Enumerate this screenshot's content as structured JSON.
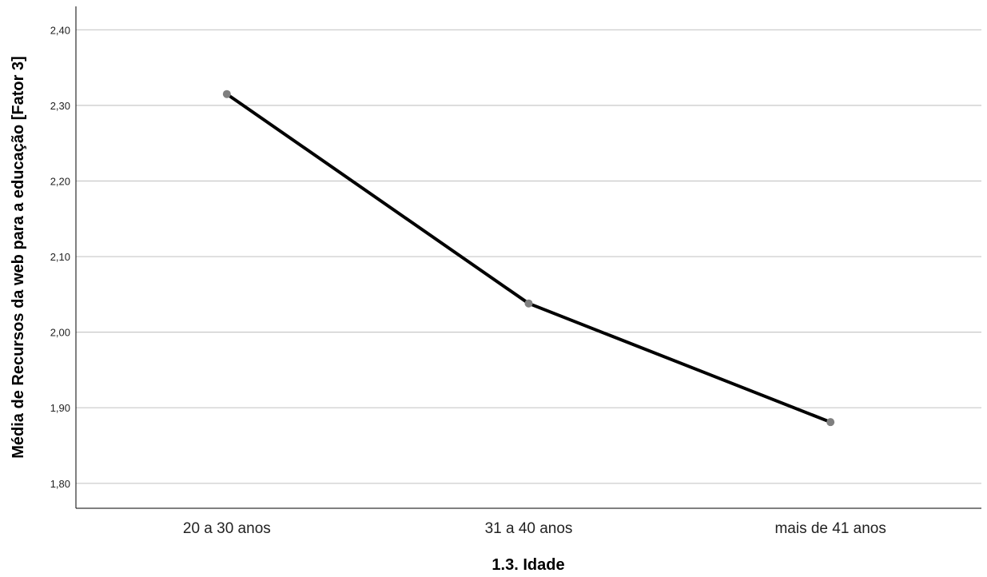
{
  "chart_data": {
    "type": "line",
    "xlabel": "1.3. Idade",
    "ylabel": "Média de Recursos da web para a educação [Fator 3]",
    "categories": [
      "20 a 30 anos",
      "31 a 40 anos",
      "mais de 41 anos"
    ],
    "series": [
      {
        "values": [
          2.315,
          2.038,
          1.881
        ]
      }
    ],
    "ylim": [
      1.767,
      2.431
    ],
    "yticks": [
      1.8,
      1.9,
      2.0,
      2.1,
      2.2,
      2.3,
      2.4
    ],
    "ytick_labels": [
      "1,80",
      "1,90",
      "2,00",
      "2,10",
      "2,20",
      "2,30",
      "2,40"
    ],
    "grid": "horizontal",
    "line_color": "#000000",
    "marker_color": "#7f7f7f",
    "grid_color": "#c8c8c8"
  }
}
